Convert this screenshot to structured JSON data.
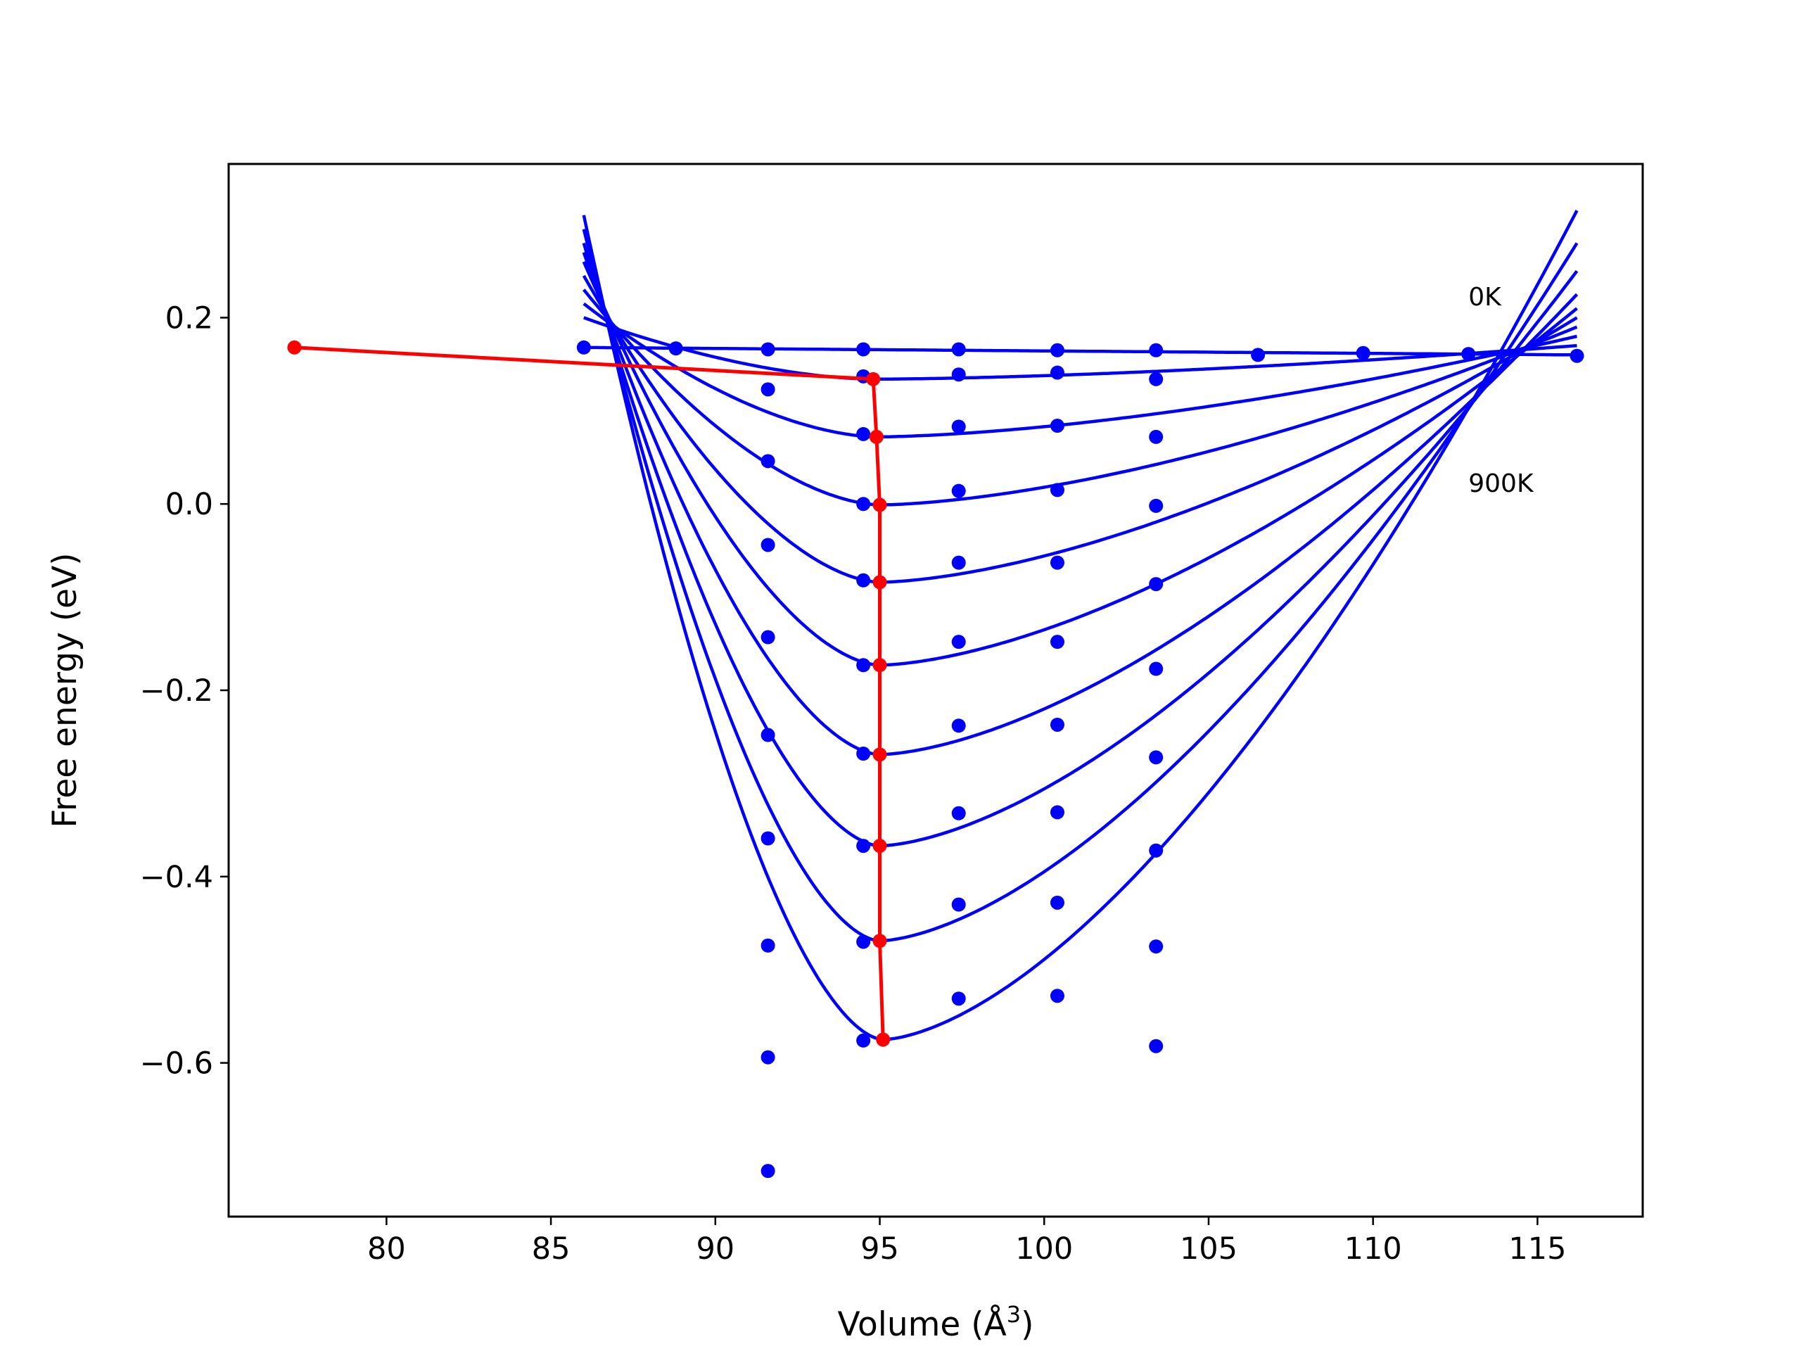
{
  "chart_data": {
    "type": "line",
    "xlabel": "Volume (Å",
    "xlabel_sup": "3",
    "xlabel_end": ")",
    "ylabel": "Free energy (eV)",
    "xlim": [
      75.2,
      118.2
    ],
    "ylim": [
      -0.765,
      0.365
    ],
    "xticks": [
      80,
      85,
      90,
      95,
      100,
      105,
      110,
      115
    ],
    "xtick_labels": [
      "80",
      "85",
      "90",
      "95",
      "100",
      "105",
      "110",
      "115"
    ],
    "yticks": [
      -0.6,
      -0.4,
      -0.2,
      0.0,
      0.2
    ],
    "ytick_labels": [
      "−0.6",
      "−0.4",
      "−0.2",
      "0.0",
      "0.2"
    ],
    "grid": false,
    "annotations": [
      {
        "text": "0K",
        "x": 112.9,
        "y": 0.213
      },
      {
        "text": "900K",
        "x": 112.9,
        "y": 0.013
      }
    ],
    "colors": {
      "fit_curves": "#0000ff",
      "data_points": "#0000ff",
      "minimum_path": "#ff0000"
    },
    "fit_curves": {
      "x_start": 86.0,
      "x_end": 116.2,
      "curves": [
        {
          "label": "0K",
          "minimum_volume": 77.2,
          "minimum_energy": 0.168,
          "left_edge_energy": 0.168,
          "right_edge_energy": 0.16
        },
        {
          "minimum_volume": 94.8,
          "minimum_energy": 0.134,
          "left_edge_energy": 0.2,
          "right_edge_energy": 0.17
        },
        {
          "minimum_volume": 94.9,
          "minimum_energy": 0.072,
          "left_edge_energy": 0.215,
          "right_edge_energy": 0.18
        },
        {
          "minimum_volume": 95.0,
          "minimum_energy": -0.001,
          "left_edge_energy": 0.23,
          "right_edge_energy": 0.19
        },
        {
          "minimum_volume": 95.0,
          "minimum_energy": -0.084,
          "left_edge_energy": 0.245,
          "right_edge_energy": 0.2
        },
        {
          "minimum_volume": 95.0,
          "minimum_energy": -0.173,
          "left_edge_energy": 0.26,
          "right_edge_energy": 0.21
        },
        {
          "minimum_volume": 95.0,
          "minimum_energy": -0.269,
          "left_edge_energy": 0.27,
          "right_edge_energy": 0.225
        },
        {
          "minimum_volume": 95.0,
          "minimum_energy": -0.367,
          "left_edge_energy": 0.28,
          "right_edge_energy": 0.25
        },
        {
          "minimum_volume": 95.0,
          "minimum_energy": -0.469,
          "left_edge_energy": 0.295,
          "right_edge_energy": 0.28
        },
        {
          "label": "900K",
          "minimum_volume": 95.1,
          "minimum_energy": -0.575,
          "left_edge_energy": 0.31,
          "right_edge_energy": 0.315
        }
      ]
    },
    "data_points": [
      {
        "x": 86.0,
        "y": 0.168
      },
      {
        "x": 88.8,
        "y": 0.167
      },
      {
        "x": 91.6,
        "y": 0.166
      },
      {
        "x": 91.6,
        "y": 0.123
      },
      {
        "x": 91.6,
        "y": 0.046
      },
      {
        "x": 91.6,
        "y": -0.044
      },
      {
        "x": 91.6,
        "y": -0.143
      },
      {
        "x": 91.6,
        "y": -0.248
      },
      {
        "x": 91.6,
        "y": -0.359
      },
      {
        "x": 91.6,
        "y": -0.474
      },
      {
        "x": 91.6,
        "y": -0.594
      },
      {
        "x": 91.6,
        "y": -0.716
      },
      {
        "x": 94.5,
        "y": 0.166
      },
      {
        "x": 94.5,
        "y": 0.137
      },
      {
        "x": 94.5,
        "y": 0.075
      },
      {
        "x": 94.5,
        "y": 0.0
      },
      {
        "x": 94.5,
        "y": -0.082
      },
      {
        "x": 94.5,
        "y": -0.173
      },
      {
        "x": 94.5,
        "y": -0.268
      },
      {
        "x": 94.5,
        "y": -0.367
      },
      {
        "x": 94.5,
        "y": -0.47
      },
      {
        "x": 94.5,
        "y": -0.576
      },
      {
        "x": 97.4,
        "y": 0.166
      },
      {
        "x": 97.4,
        "y": 0.139
      },
      {
        "x": 97.4,
        "y": 0.083
      },
      {
        "x": 97.4,
        "y": 0.014
      },
      {
        "x": 97.4,
        "y": -0.063
      },
      {
        "x": 97.4,
        "y": -0.148
      },
      {
        "x": 97.4,
        "y": -0.238
      },
      {
        "x": 97.4,
        "y": -0.332
      },
      {
        "x": 97.4,
        "y": -0.43
      },
      {
        "x": 97.4,
        "y": -0.531
      },
      {
        "x": 100.4,
        "y": 0.165
      },
      {
        "x": 100.4,
        "y": 0.141
      },
      {
        "x": 100.4,
        "y": 0.084
      },
      {
        "x": 100.4,
        "y": 0.015
      },
      {
        "x": 100.4,
        "y": -0.063
      },
      {
        "x": 100.4,
        "y": -0.148
      },
      {
        "x": 100.4,
        "y": -0.237
      },
      {
        "x": 100.4,
        "y": -0.331
      },
      {
        "x": 100.4,
        "y": -0.428
      },
      {
        "x": 100.4,
        "y": -0.528
      },
      {
        "x": 103.4,
        "y": 0.165
      },
      {
        "x": 103.4,
        "y": 0.134
      },
      {
        "x": 103.4,
        "y": 0.072
      },
      {
        "x": 103.4,
        "y": -0.002
      },
      {
        "x": 103.4,
        "y": -0.086
      },
      {
        "x": 103.4,
        "y": -0.177
      },
      {
        "x": 103.4,
        "y": -0.272
      },
      {
        "x": 103.4,
        "y": -0.372
      },
      {
        "x": 103.4,
        "y": -0.475
      },
      {
        "x": 103.4,
        "y": -0.582
      },
      {
        "x": 106.5,
        "y": 0.16
      },
      {
        "x": 109.7,
        "y": 0.162
      },
      {
        "x": 112.9,
        "y": 0.161
      },
      {
        "x": 116.2,
        "y": 0.159
      }
    ],
    "minimum_path": [
      {
        "x": 77.2,
        "y": 0.168
      },
      {
        "x": 94.8,
        "y": 0.134
      },
      {
        "x": 94.9,
        "y": 0.072
      },
      {
        "x": 95.0,
        "y": -0.001
      },
      {
        "x": 95.0,
        "y": -0.084
      },
      {
        "x": 95.0,
        "y": -0.173
      },
      {
        "x": 95.0,
        "y": -0.269
      },
      {
        "x": 95.0,
        "y": -0.367
      },
      {
        "x": 95.0,
        "y": -0.469
      },
      {
        "x": 95.1,
        "y": -0.575
      }
    ]
  }
}
